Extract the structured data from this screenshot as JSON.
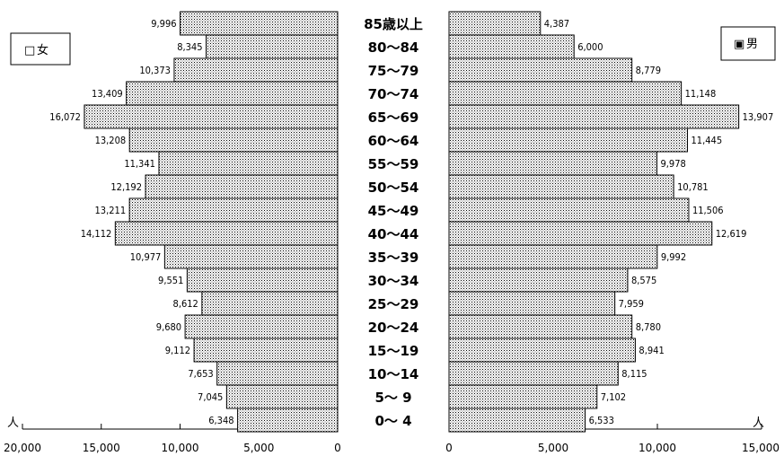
{
  "chart_data": {
    "type": "bar",
    "orientation": "population-pyramid",
    "categories": [
      "85歳以上",
      "80〜84",
      "75〜79",
      "70〜74",
      "65〜69",
      "60〜64",
      "55〜59",
      "50〜54",
      "45〜49",
      "40〜44",
      "35〜39",
      "30〜34",
      "25〜29",
      "20〜24",
      "15〜19",
      "10〜14",
      "5〜 9",
      "0〜 4"
    ],
    "series": [
      {
        "name": "女",
        "side": "left",
        "values": [
          9996,
          8345,
          10373,
          13409,
          16072,
          13208,
          11341,
          12192,
          13211,
          14112,
          10977,
          9551,
          8612,
          9680,
          9112,
          7653,
          7045,
          6348
        ],
        "labels": [
          "9,996",
          "8,345",
          "10,373",
          "13,409",
          "16,072",
          "13,208",
          "11,341",
          "12,192",
          "13,211",
          "14,112",
          "10,977",
          "9,551",
          "8,612",
          "9,680",
          "9,112",
          "7,653",
          "7,045",
          "6,348"
        ]
      },
      {
        "name": "男",
        "side": "right",
        "values": [
          4387,
          6000,
          8779,
          11148,
          13907,
          11445,
          9978,
          10781,
          11506,
          12619,
          9992,
          8575,
          7959,
          8780,
          8941,
          8115,
          7102,
          6533
        ],
        "labels": [
          "4,387",
          "6,000",
          "8,779",
          "11,148",
          "13,907",
          "11,445",
          "9,978",
          "10,781",
          "11,506",
          "12,619",
          "9,992",
          "8,575",
          "7,959",
          "8,780",
          "8,941",
          "8,115",
          "7,102",
          "6,533"
        ]
      }
    ],
    "left_axis": {
      "range": [
        0,
        20000
      ],
      "ticks": [
        "20,000",
        "15,000",
        "10,000",
        "5,000",
        "0"
      ],
      "unit": "人"
    },
    "right_axis": {
      "range": [
        0,
        15000
      ],
      "ticks": [
        "0",
        "5,000",
        "10,000",
        "15,000"
      ],
      "unit": "人"
    },
    "legend": {
      "female": "女",
      "male": "男",
      "female_marker": "□",
      "male_marker": "▣"
    },
    "grid": false
  }
}
